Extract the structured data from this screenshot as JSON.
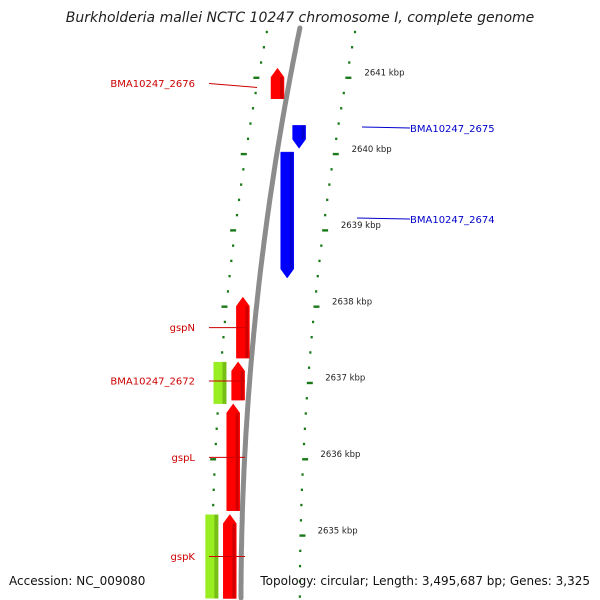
{
  "title": "Burkholderia mallei NCTC 10247 chromosome I, complete genome",
  "footer": {
    "accession": "Accession: NC_009080",
    "summary": "Topology: circular; Length: 3,495,687 bp; Genes: 3,325"
  },
  "colors": {
    "forward_gene": "#ff0000",
    "reverse_gene": "#0000ff",
    "feature_green": "#99ee22",
    "backbone": "#8c8c8c",
    "ticks": "#1a7a1a",
    "forward_label": "#cc0000",
    "reverse_label": "#0000cc"
  },
  "scale": [
    {
      "label": "2641 kbp",
      "kbp": 2641
    },
    {
      "label": "2640 kbp",
      "kbp": 2640
    },
    {
      "label": "2639 kbp",
      "kbp": 2639
    },
    {
      "label": "2638 kbp",
      "kbp": 2638
    },
    {
      "label": "2637 kbp",
      "kbp": 2637
    },
    {
      "label": "2636 kbp",
      "kbp": 2636
    },
    {
      "label": "2635 kbp",
      "kbp": 2635
    }
  ],
  "genes": [
    {
      "name": "BMA10247_2676",
      "strand": "forward",
      "start_kbp": 2641.05,
      "end_kbp": 2640.65
    },
    {
      "name": "BMA10247_2675",
      "strand": "reverse",
      "start_kbp": 2640.3,
      "end_kbp": 2640.0
    },
    {
      "name": "BMA10247_2674",
      "strand": "reverse",
      "start_kbp": 2639.95,
      "end_kbp": 2638.3
    },
    {
      "name": "gspN",
      "strand": "forward",
      "start_kbp": 2638.05,
      "end_kbp": 2637.25
    },
    {
      "name": "BMA10247_2672",
      "strand": "forward",
      "start_kbp": 2637.2,
      "end_kbp": 2636.7
    },
    {
      "name": "gspL",
      "strand": "forward",
      "start_kbp": 2636.65,
      "end_kbp": 2635.25
    },
    {
      "name": "gspK",
      "strand": "forward",
      "start_kbp": 2635.2,
      "end_kbp": 2634.1
    }
  ],
  "green_features": [
    {
      "start_kbp": 2637.2,
      "end_kbp": 2636.65
    },
    {
      "start_kbp": 2635.2,
      "end_kbp": 2634.1
    }
  ]
}
